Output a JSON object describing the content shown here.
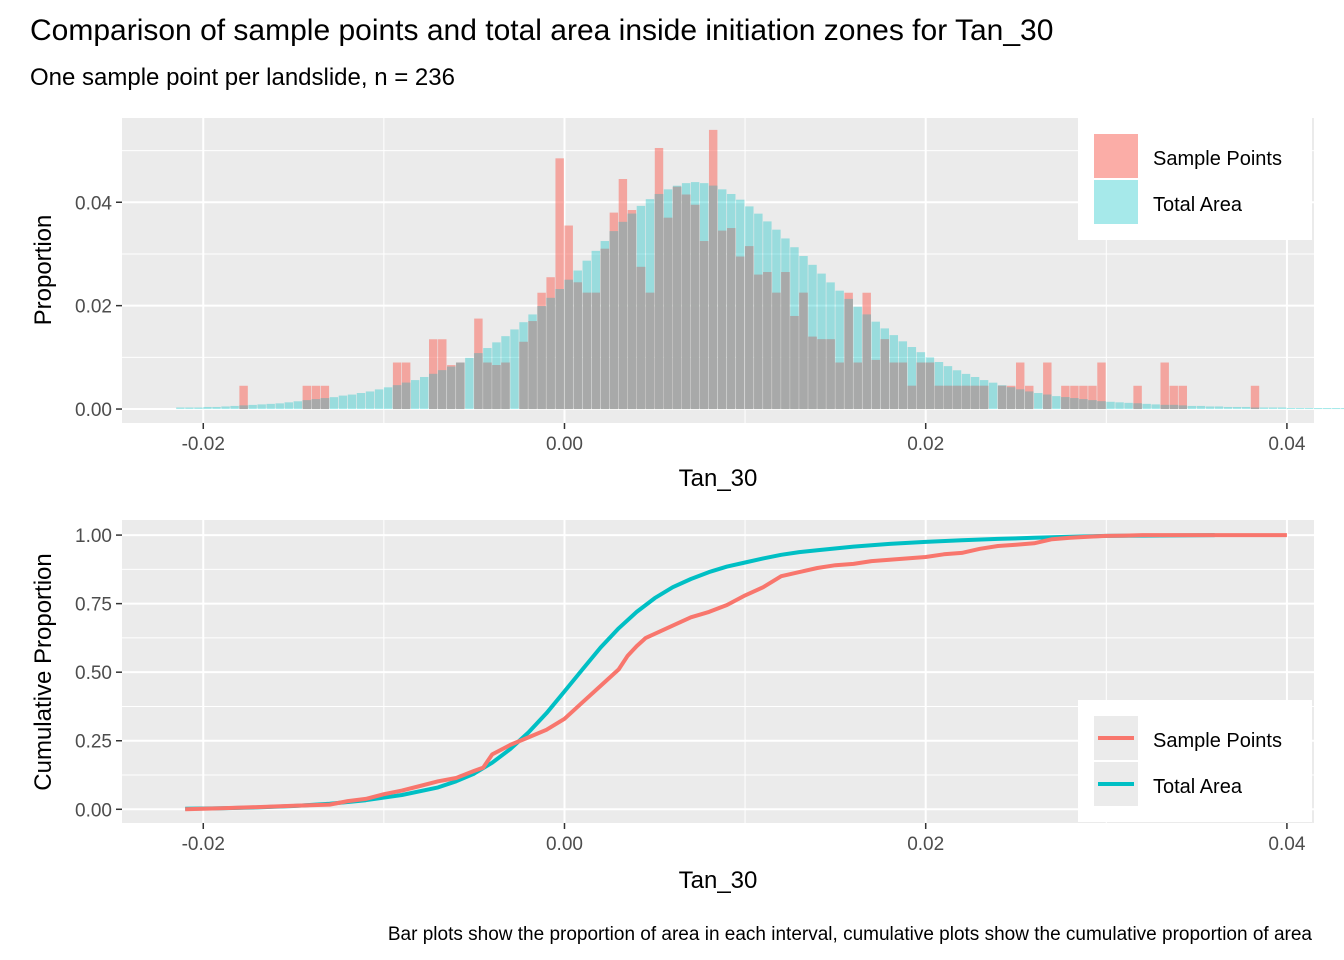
{
  "title": "Comparison of sample points and total area inside initiation zones for Tan_30",
  "subtitle": "One sample point per landslide, n = 236",
  "caption": "Bar plots show the proportion of area in each interval, cumulative plots show the cumulative proportion of area",
  "legend": {
    "sample": "Sample Points",
    "total": "Total Area"
  },
  "colors": {
    "sample": "#f8766d",
    "total": "#00bfc4",
    "panel": "#ebebeb",
    "grid": "#ffffff",
    "overlap": "#a9a9a9"
  },
  "chart_data": [
    {
      "type": "bar",
      "xlabel": "Tan_30",
      "ylabel": "Proportion",
      "xlim": [
        -0.0245,
        0.0415
      ],
      "ylim": [
        -0.0027,
        0.0563
      ],
      "xticks": [
        -0.02,
        0.0,
        0.02,
        0.04
      ],
      "xtick_labels": [
        "-0.02",
        "0.00",
        "0.02",
        "0.04"
      ],
      "yticks": [
        0.0,
        0.02,
        0.04
      ],
      "ytick_labels": [
        "0.00",
        "0.02",
        "0.04"
      ],
      "grid": true,
      "legend_position": "right-top",
      "bin_start": -0.0215,
      "bin_width": 0.0005,
      "series": [
        {
          "name": "Sample Points",
          "values": [
            0,
            0,
            0,
            0,
            0,
            0,
            0,
            0.0045,
            0,
            0,
            0,
            0,
            0,
            0,
            0.0045,
            0.0045,
            0.0045,
            0,
            0,
            0,
            0,
            0,
            0,
            0,
            0.009,
            0.009,
            0,
            0,
            0.0135,
            0.0135,
            0.0085,
            0.009,
            0,
            0.0175,
            0.009,
            0.0085,
            0.009,
            0,
            0.013,
            0.017,
            0.0225,
            0.0255,
            0.0485,
            0.0355,
            0.0245,
            0.0225,
            0.0225,
            0.031,
            0.038,
            0.0445,
            0.0385,
            0.0275,
            0.0225,
            0.0505,
            0.037,
            0.043,
            0.0415,
            0.0395,
            0.0325,
            0.054,
            0.0345,
            0.035,
            0.0295,
            0.0315,
            0.026,
            0.0265,
            0.0225,
            0.0265,
            0.018,
            0.0225,
            0.014,
            0.0135,
            0.0135,
            0.009,
            0.0225,
            0.009,
            0.0225,
            0.0095,
            0.0135,
            0.009,
            0.009,
            0.0045,
            0.009,
            0.009,
            0.0045,
            0.0045,
            0.0045,
            0.0045,
            0.0045,
            0.0045,
            0,
            0.0045,
            0.0045,
            0.009,
            0.0045,
            0,
            0.009,
            0,
            0.0045,
            0.0045,
            0.0045,
            0.0045,
            0.009,
            0,
            0,
            0,
            0.0045,
            0,
            0,
            0.009,
            0.0045,
            0.0045,
            0,
            0,
            0,
            0,
            0,
            0,
            0,
            0.0045,
            0,
            0,
            0,
            0,
            0,
            0,
            0,
            0,
            0,
            0,
            0,
            0,
            0,
            0
          ]
        },
        {
          "name": "Total Area",
          "values": [
            0.0003,
            0.0003,
            0.0003,
            0.0004,
            0.0004,
            0.0005,
            0.0006,
            0.0007,
            0.0008,
            0.0009,
            0.001,
            0.0011,
            0.0013,
            0.0015,
            0.0017,
            0.0019,
            0.0021,
            0.0023,
            0.0026,
            0.0028,
            0.0031,
            0.0034,
            0.0038,
            0.0042,
            0.0046,
            0.0051,
            0.0056,
            0.0062,
            0.0068,
            0.0075,
            0.0082,
            0.009,
            0.0099,
            0.0108,
            0.0118,
            0.0129,
            0.0141,
            0.0154,
            0.0168,
            0.0183,
            0.0199,
            0.0215,
            0.0232,
            0.025,
            0.0268,
            0.0287,
            0.0306,
            0.0325,
            0.0344,
            0.0362,
            0.0378,
            0.0393,
            0.0406,
            0.0416,
            0.0425,
            0.0432,
            0.0437,
            0.0439,
            0.0437,
            0.0432,
            0.0425,
            0.0416,
            0.0405,
            0.0392,
            0.0378,
            0.0363,
            0.0347,
            0.033,
            0.0313,
            0.0296,
            0.0279,
            0.0262,
            0.0245,
            0.0229,
            0.0213,
            0.0198,
            0.0183,
            0.0169,
            0.0156,
            0.0143,
            0.0131,
            0.012,
            0.011,
            0.01,
            0.0091,
            0.0083,
            0.0075,
            0.0068,
            0.0062,
            0.0056,
            0.0051,
            0.0046,
            0.0042,
            0.0038,
            0.0034,
            0.0031,
            0.0028,
            0.0025,
            0.0023,
            0.0021,
            0.0019,
            0.0017,
            0.0015,
            0.0014,
            0.0013,
            0.0012,
            0.0011,
            0.001,
            0.0009,
            0.0008,
            0.0008,
            0.0007,
            0.0006,
            0.0006,
            0.0005,
            0.0005,
            0.0004,
            0.0004,
            0.0004,
            0.0003,
            0.0003,
            0.0003,
            0.0003,
            0.0002,
            0.0002,
            0.0002,
            0.0002,
            0.0002,
            0.0002,
            0.0002,
            0.0001,
            0.0001,
            0.0001,
            0.0001,
            0.0001,
            0.0001,
            0.0001
          ]
        }
      ]
    },
    {
      "type": "line",
      "xlabel": "Tan_30",
      "ylabel": "Cumulative Proportion",
      "xlim": [
        -0.0245,
        0.0415
      ],
      "ylim": [
        -0.05,
        1.055
      ],
      "xticks": [
        -0.02,
        0.0,
        0.02,
        0.04
      ],
      "xtick_labels": [
        "-0.02",
        "0.00",
        "0.02",
        "0.04"
      ],
      "yticks": [
        0.0,
        0.25,
        0.5,
        0.75,
        1.0
      ],
      "ytick_labels": [
        "0.00",
        "0.25",
        "0.50",
        "0.75",
        "1.00"
      ],
      "grid": true,
      "legend_position": "right-bottom",
      "series": [
        {
          "name": "Sample Points",
          "x": [
            -0.021,
            -0.019,
            -0.017,
            -0.015,
            -0.013,
            -0.012,
            -0.011,
            -0.01,
            -0.009,
            -0.008,
            -0.007,
            -0.006,
            -0.005,
            -0.0045,
            -0.004,
            -0.003,
            -0.002,
            -0.001,
            0.0,
            0.001,
            0.002,
            0.003,
            0.0035,
            0.004,
            0.0045,
            0.005,
            0.006,
            0.007,
            0.008,
            0.009,
            0.01,
            0.011,
            0.012,
            0.013,
            0.014,
            0.015,
            0.016,
            0.017,
            0.018,
            0.019,
            0.02,
            0.021,
            0.022,
            0.023,
            0.024,
            0.025,
            0.026,
            0.027,
            0.028,
            0.029,
            0.03,
            0.031,
            0.032,
            0.034,
            0.036,
            0.038,
            0.04
          ],
          "y": [
            0.0,
            0.004,
            0.008,
            0.013,
            0.017,
            0.03,
            0.038,
            0.055,
            0.068,
            0.085,
            0.102,
            0.114,
            0.14,
            0.152,
            0.2,
            0.235,
            0.262,
            0.29,
            0.33,
            0.39,
            0.45,
            0.51,
            0.56,
            0.595,
            0.625,
            0.64,
            0.67,
            0.7,
            0.72,
            0.745,
            0.78,
            0.81,
            0.85,
            0.865,
            0.88,
            0.89,
            0.895,
            0.905,
            0.91,
            0.915,
            0.92,
            0.93,
            0.935,
            0.95,
            0.96,
            0.965,
            0.97,
            0.985,
            0.99,
            0.994,
            0.997,
            0.998,
            1.0,
            1.0,
            1.0,
            1.0,
            1.0
          ]
        },
        {
          "name": "Total Area",
          "x": [
            -0.021,
            -0.019,
            -0.017,
            -0.015,
            -0.013,
            -0.011,
            -0.009,
            -0.007,
            -0.006,
            -0.005,
            -0.004,
            -0.003,
            -0.002,
            -0.001,
            0.0,
            0.001,
            0.002,
            0.003,
            0.004,
            0.005,
            0.006,
            0.007,
            0.008,
            0.009,
            0.01,
            0.011,
            0.012,
            0.013,
            0.014,
            0.016,
            0.018,
            0.02,
            0.022,
            0.024,
            0.026,
            0.028,
            0.03,
            0.032,
            0.034,
            0.036
          ],
          "y": [
            0.002,
            0.004,
            0.007,
            0.012,
            0.02,
            0.033,
            0.052,
            0.08,
            0.102,
            0.13,
            0.17,
            0.22,
            0.28,
            0.35,
            0.43,
            0.51,
            0.59,
            0.66,
            0.72,
            0.77,
            0.81,
            0.84,
            0.865,
            0.885,
            0.9,
            0.915,
            0.928,
            0.938,
            0.945,
            0.958,
            0.968,
            0.975,
            0.981,
            0.986,
            0.99,
            0.994,
            0.997,
            0.998,
            0.999,
            1.0
          ]
        }
      ]
    }
  ]
}
